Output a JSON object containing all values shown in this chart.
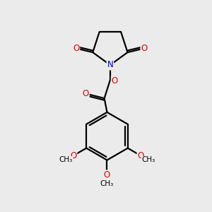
{
  "bg_color": "#ebebeb",
  "bond_color": "#000000",
  "bond_width": 1.6,
  "N_color": "#0000cc",
  "O_color": "#dd0000",
  "font_size_atom": 8.5,
  "fig_size": [
    3.0,
    3.0
  ],
  "dpi": 100,
  "xlim": [
    0,
    10
  ],
  "ylim": [
    0,
    10
  ]
}
